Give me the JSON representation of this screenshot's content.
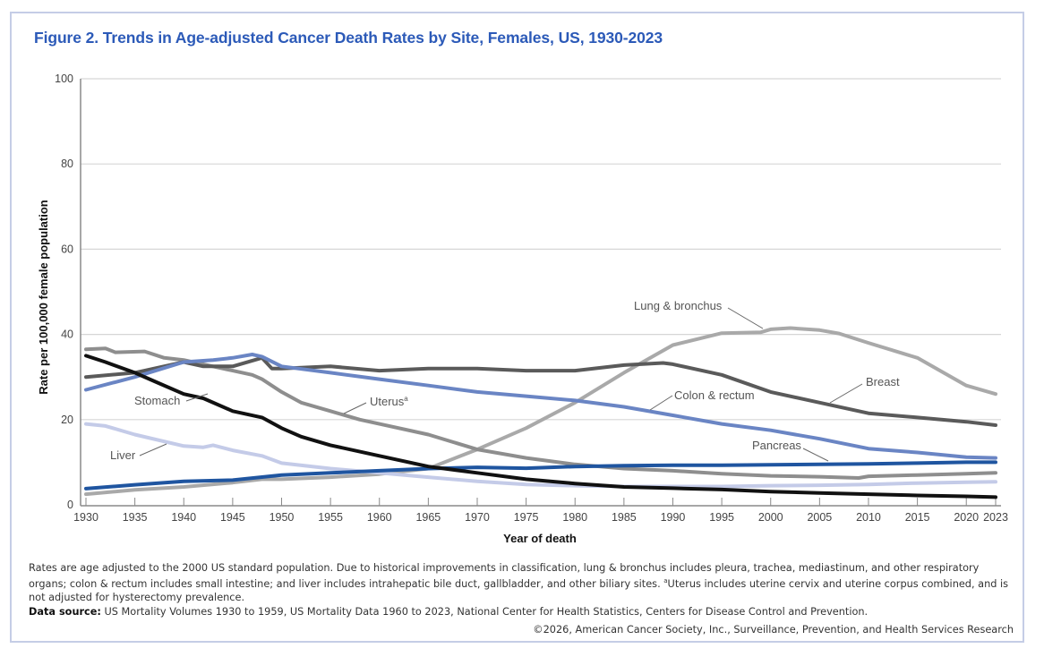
{
  "title": "Figure 2. Trends in Age-adjusted Cancer Death Rates by Site, Females, US, 1930-2023",
  "footnote": {
    "main": "Rates are age adjusted to the 2000 US standard population. Due to historical improvements in classification, lung & bronchus includes pleura, trachea, mediastinum, and other respiratory organs; colon & rectum includes small intestine; and liver includes intrahepatic bile duct, gallbladder, and other biliary sites. ",
    "superscript": "a",
    "uterus_note": "Uterus includes uterine cervix and uterine corpus combined, and is not adjusted for hysterectomy prevalence."
  },
  "source": {
    "label": "Data source:",
    "text": " US Mortality Volumes 1930 to 1959, US Mortality Data 1960 to 2023, National Center for Health Statistics, Centers for Disease Control and Prevention."
  },
  "copyright": "©2026, American Cancer Society, Inc., Surveillance, Prevention, and Health Services Research",
  "chart_data": {
    "type": "line",
    "title": "Figure 2. Trends in Age-adjusted Cancer Death Rates by Site, Females, US, 1930-2023",
    "xlabel": "Year of death",
    "ylabel": "Rate per 100,000 female population",
    "xlim": [
      1930,
      2023
    ],
    "ylim": [
      0,
      100
    ],
    "x_ticks": [
      "1930",
      "1935",
      "1940",
      "1945",
      "1950",
      "1955",
      "1960",
      "1965",
      "1970",
      "1975",
      "1980",
      "1985",
      "1990",
      "1995",
      "2000",
      "2005",
      "2010",
      "2015",
      "2020",
      "2023"
    ],
    "y_ticks": [
      "0",
      "20",
      "40",
      "60",
      "80",
      "100"
    ],
    "grid": "horizontal",
    "legend": "direct labels",
    "series": [
      {
        "name": "Lung & bronchus",
        "color": "#a9a9a9",
        "x": [
          1930,
          1935,
          1940,
          1945,
          1948,
          1950,
          1955,
          1960,
          1965,
          1970,
          1975,
          1980,
          1985,
          1990,
          1995,
          1999,
          2000,
          2002,
          2005,
          2007,
          2010,
          2015,
          2020,
          2023
        ],
        "values": [
          2.5,
          3.5,
          4.2,
          5.2,
          6.0,
          6.0,
          6.5,
          7.2,
          8.5,
          13.0,
          18.0,
          24.0,
          31.0,
          37.5,
          40.3,
          40.5,
          41.2,
          41.5,
          41.0,
          40.2,
          38.0,
          34.5,
          28.0,
          26.0
        ]
      },
      {
        "name": "Breast",
        "color": "#5a5a5a",
        "x": [
          1930,
          1935,
          1940,
          1942,
          1945,
          1948,
          1949,
          1950,
          1955,
          1960,
          1965,
          1970,
          1975,
          1980,
          1985,
          1989,
          1990,
          1995,
          2000,
          2005,
          2010,
          2015,
          2020,
          2023
        ],
        "values": [
          30.0,
          31.0,
          33.5,
          32.5,
          32.5,
          34.5,
          32.0,
          32.0,
          32.5,
          31.5,
          32.0,
          32.0,
          31.5,
          31.5,
          32.8,
          33.3,
          33.0,
          30.5,
          26.5,
          24.0,
          21.5,
          20.5,
          19.5,
          18.7
        ]
      },
      {
        "name": "Colon & rectum",
        "color": "#6a85c4",
        "x": [
          1930,
          1935,
          1940,
          1943,
          1945,
          1947,
          1948,
          1950,
          1955,
          1960,
          1965,
          1970,
          1975,
          1980,
          1985,
          1990,
          1995,
          2000,
          2005,
          2010,
          2015,
          2020,
          2023
        ],
        "values": [
          27.0,
          30.0,
          33.5,
          34.0,
          34.5,
          35.3,
          34.8,
          32.5,
          31.0,
          29.5,
          28.0,
          26.5,
          25.5,
          24.5,
          23.0,
          21.0,
          19.0,
          17.5,
          15.5,
          13.2,
          12.3,
          11.2,
          11.0
        ]
      },
      {
        "name": "Pancreas",
        "color": "#1f55a0",
        "x": [
          1930,
          1935,
          1940,
          1945,
          1950,
          1955,
          1960,
          1965,
          1970,
          1975,
          1980,
          1985,
          1990,
          1995,
          2000,
          2005,
          2010,
          2015,
          2020,
          2023
        ],
        "values": [
          3.8,
          4.7,
          5.5,
          5.8,
          7.0,
          7.5,
          8.0,
          8.5,
          8.8,
          8.6,
          9.0,
          9.2,
          9.3,
          9.3,
          9.4,
          9.5,
          9.6,
          9.8,
          10.0,
          10.0
        ]
      },
      {
        "name": "Uterus",
        "label_superscript": "a",
        "color": "#8e8e8e",
        "x": [
          1930,
          1932,
          1933,
          1936,
          1938,
          1940,
          1945,
          1947,
          1948,
          1950,
          1952,
          1955,
          1958,
          1960,
          1965,
          1970,
          1975,
          1980,
          1985,
          1990,
          1995,
          2000,
          2005,
          2009,
          2010,
          2015,
          2020,
          2023
        ],
        "values": [
          36.5,
          36.7,
          35.8,
          36.0,
          34.5,
          34.0,
          31.5,
          30.5,
          29.5,
          26.5,
          24.0,
          22.0,
          20.0,
          19.0,
          16.5,
          13.0,
          11.0,
          9.5,
          8.5,
          8.0,
          7.3,
          6.8,
          6.6,
          6.3,
          6.7,
          7.0,
          7.3,
          7.5
        ]
      },
      {
        "name": "Liver",
        "color": "#c4cbe8",
        "x": [
          1930,
          1932,
          1935,
          1940,
          1942,
          1943,
          1945,
          1948,
          1950,
          1955,
          1960,
          1965,
          1970,
          1975,
          1980,
          1985,
          1990,
          1995,
          2000,
          2005,
          2010,
          2015,
          2020,
          2023
        ],
        "values": [
          19.0,
          18.5,
          16.5,
          13.8,
          13.5,
          14.0,
          12.8,
          11.5,
          9.8,
          8.5,
          7.5,
          6.5,
          5.5,
          4.8,
          4.5,
          4.3,
          4.3,
          4.3,
          4.5,
          4.6,
          4.8,
          5.1,
          5.3,
          5.4
        ]
      },
      {
        "name": "Stomach",
        "color": "#111111",
        "x": [
          1930,
          1932,
          1935,
          1937,
          1940,
          1942,
          1945,
          1948,
          1950,
          1952,
          1955,
          1960,
          1965,
          1970,
          1975,
          1980,
          1985,
          1990,
          1995,
          2000,
          2005,
          2010,
          2015,
          2020,
          2023
        ],
        "values": [
          35.0,
          33.5,
          31.0,
          29.0,
          26.0,
          25.0,
          22.0,
          20.5,
          18.0,
          16.0,
          14.0,
          11.5,
          9.0,
          7.5,
          6.0,
          5.0,
          4.2,
          3.9,
          3.6,
          3.1,
          2.8,
          2.5,
          2.2,
          2.0,
          1.8
        ]
      }
    ]
  }
}
